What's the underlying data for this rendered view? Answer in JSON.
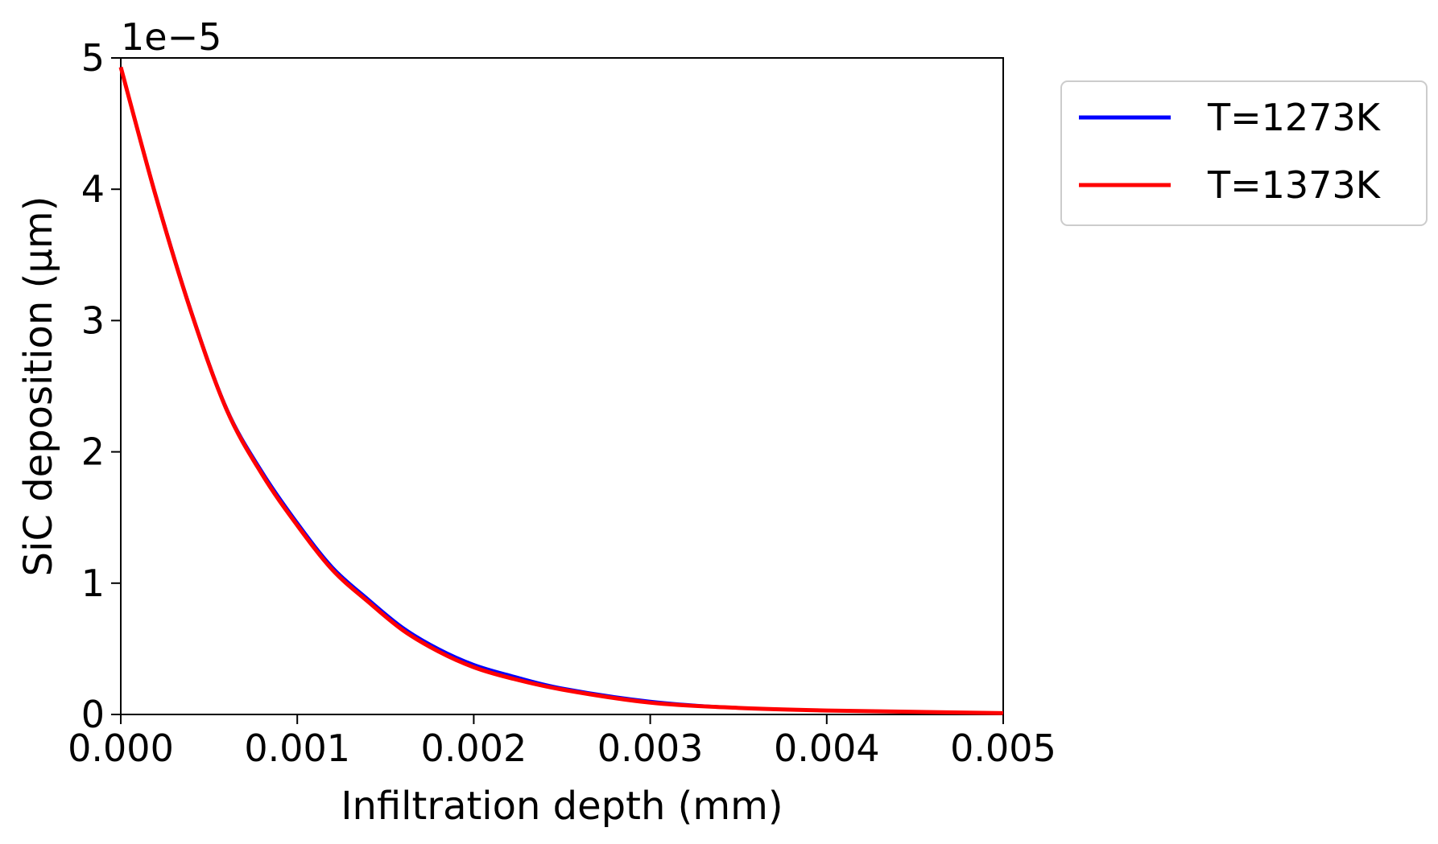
{
  "chart_data": {
    "type": "line",
    "title": "",
    "xlabel": "Infiltration depth (mm)",
    "ylabel": "SiC deposition (μm)",
    "y_offset_text": "1e−5",
    "xlim": [
      0.0,
      0.005
    ],
    "ylim": [
      0,
      5
    ],
    "x_ticks": [
      0.0,
      0.001,
      0.002,
      0.003,
      0.004,
      0.005
    ],
    "x_tick_labels": [
      "0.000",
      "0.001",
      "0.002",
      "0.003",
      "0.004",
      "0.005"
    ],
    "y_ticks": [
      0,
      1,
      2,
      3,
      4,
      5
    ],
    "y_tick_labels": [
      "0",
      "1",
      "2",
      "3",
      "4",
      "5"
    ],
    "grid": false,
    "legend_position": "outside-top-right",
    "x": [
      0.0,
      0.0002,
      0.0004,
      0.0006,
      0.0008,
      0.001,
      0.0012,
      0.0014,
      0.0016,
      0.0018,
      0.002,
      0.0022,
      0.0025,
      0.003,
      0.0035,
      0.004,
      0.0045,
      0.005
    ],
    "series": [
      {
        "name": "T=1273K",
        "color": "#0000ff",
        "values": [
          4.93,
          3.95,
          3.07,
          2.33,
          1.85,
          1.46,
          1.12,
          0.88,
          0.66,
          0.5,
          0.38,
          0.3,
          0.2,
          0.1,
          0.05,
          0.03,
          0.02,
          0.01
        ]
      },
      {
        "name": "T=1373K",
        "color": "#ff0000",
        "values": [
          4.93,
          3.94,
          3.06,
          2.32,
          1.83,
          1.44,
          1.1,
          0.86,
          0.64,
          0.48,
          0.36,
          0.28,
          0.19,
          0.09,
          0.05,
          0.03,
          0.02,
          0.01
        ]
      }
    ]
  }
}
